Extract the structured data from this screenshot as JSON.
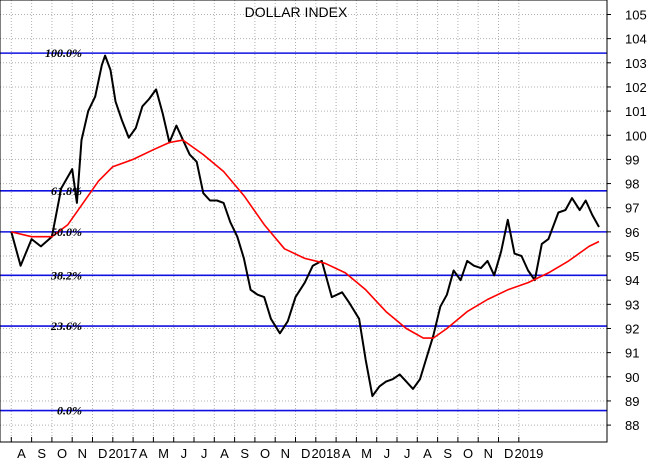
{
  "chart_data": {
    "type": "line",
    "title": "DOLLAR INDEX",
    "xlabel": "",
    "ylabel": "",
    "ylim": [
      87.3,
      105.6
    ],
    "grid": true,
    "legend": "none",
    "y_ticks": [
      88,
      89,
      90,
      91,
      92,
      93,
      94,
      95,
      96,
      97,
      98,
      99,
      100,
      101,
      102,
      103,
      104,
      105
    ],
    "x_ticks": [
      "A",
      "S",
      "O",
      "N",
      "D",
      "2017",
      "A",
      "M",
      "J",
      "J",
      "A",
      "S",
      "O",
      "N",
      "D",
      "2018",
      "A",
      "M",
      "J",
      "J",
      "A",
      "S",
      "O",
      "N",
      "D",
      "2019"
    ],
    "fibonacci_levels": [
      {
        "label": "100.0%",
        "value": 103.4
      },
      {
        "label": "61.8%",
        "value": 97.7
      },
      {
        "label": "50.0%",
        "value": 96.0
      },
      {
        "label": "38.2%",
        "value": 94.2
      },
      {
        "label": "23.6%",
        "value": 92.1
      },
      {
        "label": "0.0%",
        "value": 88.6
      }
    ],
    "series": [
      {
        "color": "#000000",
        "x": [
          "2016-08-01",
          "2016-08-15",
          "2016-09-01",
          "2016-09-15",
          "2016-10-01",
          "2016-10-15",
          "2016-11-01",
          "2016-11-08",
          "2016-11-15",
          "2016-11-25",
          "2016-12-05",
          "2016-12-15",
          "2016-12-20",
          "2016-12-28",
          "2017-01-05",
          "2017-01-15",
          "2017-01-25",
          "2017-02-05",
          "2017-02-15",
          "2017-02-25",
          "2017-03-05",
          "2017-03-15",
          "2017-03-25",
          "2017-04-05",
          "2017-04-15",
          "2017-04-25",
          "2017-05-05",
          "2017-05-15",
          "2017-05-25",
          "2017-06-05",
          "2017-06-15",
          "2017-06-25",
          "2017-07-05",
          "2017-07-15",
          "2017-07-25",
          "2017-08-05",
          "2017-08-15",
          "2017-08-25",
          "2017-09-08",
          "2017-09-20",
          "2017-10-01",
          "2017-10-15",
          "2017-10-27",
          "2017-11-10",
          "2017-11-25",
          "2017-12-10",
          "2017-12-20",
          "2018-01-05",
          "2018-01-15",
          "2018-01-25",
          "2018-02-05",
          "2018-02-15",
          "2018-02-25",
          "2018-03-05",
          "2018-03-15",
          "2018-03-25",
          "2018-04-05",
          "2018-04-15",
          "2018-04-25",
          "2018-05-05",
          "2018-05-15",
          "2018-05-25",
          "2018-06-05",
          "2018-06-15",
          "2018-06-25",
          "2018-07-05",
          "2018-07-15",
          "2018-07-25",
          "2018-08-05",
          "2018-08-15",
          "2018-08-25",
          "2018-09-05",
          "2018-09-15",
          "2018-09-25",
          "2018-10-05",
          "2018-10-15",
          "2018-10-30",
          "2018-11-10",
          "2018-11-20",
          "2018-12-01",
          "2018-12-10",
          "2018-12-20",
          "2018-12-30"
        ],
        "y": [
          96.0,
          94.6,
          95.7,
          95.4,
          95.8,
          97.8,
          98.6,
          97.2,
          99.8,
          101.0,
          101.6,
          102.9,
          103.3,
          102.7,
          101.4,
          100.6,
          99.9,
          100.3,
          101.2,
          101.5,
          101.9,
          100.9,
          99.7,
          100.4,
          99.8,
          99.2,
          98.9,
          97.6,
          97.3,
          97.3,
          97.2,
          96.4,
          95.8,
          94.9,
          93.6,
          93.4,
          93.3,
          92.4,
          91.8,
          92.3,
          93.3,
          93.9,
          94.6,
          94.8,
          93.3,
          93.5,
          93.1,
          92.4,
          90.7,
          89.2,
          89.6,
          89.8,
          89.9,
          90.1,
          89.8,
          89.5,
          89.9,
          90.8,
          91.7,
          92.9,
          93.4,
          94.4,
          94.0,
          94.8,
          94.6,
          94.5,
          94.8,
          94.2,
          95.2,
          96.5,
          95.1,
          95.0,
          94.4,
          94.0,
          95.5,
          95.7,
          96.8,
          96.9,
          97.4,
          96.9,
          97.3,
          96.7,
          96.2
        ]
      },
      {
        "color": "#ff0000",
        "x": [
          "2016-08-01",
          "2016-09-01",
          "2016-10-01",
          "2016-10-25",
          "2016-11-15",
          "2016-12-10",
          "2017-01-01",
          "2017-02-01",
          "2017-03-01",
          "2017-03-25",
          "2017-04-15",
          "2017-05-15",
          "2017-06-15",
          "2017-07-15",
          "2017-08-15",
          "2017-09-15",
          "2017-10-15",
          "2017-11-15",
          "2017-12-15",
          "2018-01-15",
          "2018-02-15",
          "2018-03-15",
          "2018-04-10",
          "2018-04-25",
          "2018-05-15",
          "2018-06-15",
          "2018-07-15",
          "2018-08-15",
          "2018-09-15",
          "2018-10-15",
          "2018-11-15",
          "2018-12-15",
          "2018-12-30"
        ],
        "y": [
          96.0,
          95.8,
          95.8,
          96.3,
          97.1,
          98.1,
          98.7,
          99.0,
          99.4,
          99.7,
          99.8,
          99.2,
          98.5,
          97.5,
          96.3,
          95.3,
          94.9,
          94.7,
          94.3,
          93.6,
          92.7,
          92.0,
          91.6,
          91.6,
          92.0,
          92.7,
          93.2,
          93.6,
          93.9,
          94.3,
          94.8,
          95.4,
          95.6
        ]
      }
    ]
  }
}
